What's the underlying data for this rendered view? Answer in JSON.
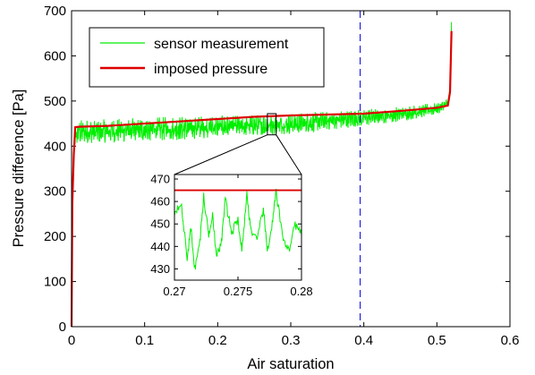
{
  "chart_data": {
    "type": "line",
    "xlabel": "Air saturation",
    "ylabel": "Pressure difference [Pa]",
    "xlim": [
      0,
      0.6
    ],
    "ylim": [
      0,
      700
    ],
    "xticks": [
      "0",
      "0.1",
      "0.2",
      "0.3",
      "0.4",
      "0.5",
      "0.6"
    ],
    "yticks": [
      "0",
      "100",
      "200",
      "300",
      "400",
      "500",
      "600",
      "700"
    ],
    "grid": false,
    "legend_position": "top-left",
    "series": [
      {
        "name": "sensor measurement",
        "color": "#00ee00",
        "x": [
          0.0,
          0.002,
          0.005,
          0.01,
          0.05,
          0.1,
          0.15,
          0.2,
          0.25,
          0.3,
          0.35,
          0.4,
          0.45,
          0.5,
          0.515,
          0.518,
          0.52
        ],
        "y": [
          0,
          350,
          420,
          430,
          432,
          435,
          438,
          442,
          445,
          448,
          455,
          462,
          470,
          482,
          495,
          530,
          675
        ],
        "fluctuation": [
          0,
          0,
          25,
          35,
          35,
          35,
          35,
          32,
          30,
          30,
          28,
          25,
          22,
          18,
          12,
          5,
          0
        ]
      },
      {
        "name": "imposed pressure",
        "color": "#dd0000",
        "x": [
          0.0,
          0.001,
          0.003,
          0.005,
          0.01,
          0.05,
          0.1,
          0.15,
          0.2,
          0.25,
          0.3,
          0.35,
          0.4,
          0.45,
          0.5,
          0.515,
          0.518,
          0.52
        ],
        "y": [
          0,
          270,
          380,
          442,
          443,
          445,
          450,
          455,
          460,
          465,
          468,
          470,
          472,
          478,
          485,
          490,
          520,
          655
        ]
      }
    ],
    "vline": {
      "x": 0.395,
      "color": "#0000dd",
      "style": "dashed"
    },
    "zoom_box": {
      "x": [
        0.268,
        0.28
      ],
      "y": [
        425,
        472
      ]
    },
    "inset": {
      "xlim": [
        0.27,
        0.28
      ],
      "ylim": [
        425,
        472
      ],
      "xticks": [
        "0.27",
        "0.275",
        "0.28"
      ],
      "yticks": [
        "430",
        "440",
        "450",
        "460",
        "470"
      ],
      "series": [
        {
          "name": "sensor measurement",
          "color": "#00ee00",
          "x": [
            0.27,
            0.2705,
            0.271,
            0.2713,
            0.2716,
            0.272,
            0.2723,
            0.2727,
            0.273,
            0.2733,
            0.2737,
            0.274,
            0.2745,
            0.275,
            0.2753,
            0.2757,
            0.276,
            0.2765,
            0.277,
            0.2773,
            0.2777,
            0.278,
            0.2785,
            0.279,
            0.2795,
            0.28
          ],
          "y": [
            455,
            460,
            435,
            448,
            430,
            442,
            462,
            445,
            455,
            435,
            442,
            461,
            446,
            452,
            438,
            463,
            448,
            442,
            457,
            438,
            450,
            464,
            445,
            438,
            450,
            445
          ]
        },
        {
          "name": "imposed pressure",
          "color": "#dd0000",
          "x": [
            0.27,
            0.28
          ],
          "y": [
            465,
            465
          ]
        }
      ]
    }
  }
}
